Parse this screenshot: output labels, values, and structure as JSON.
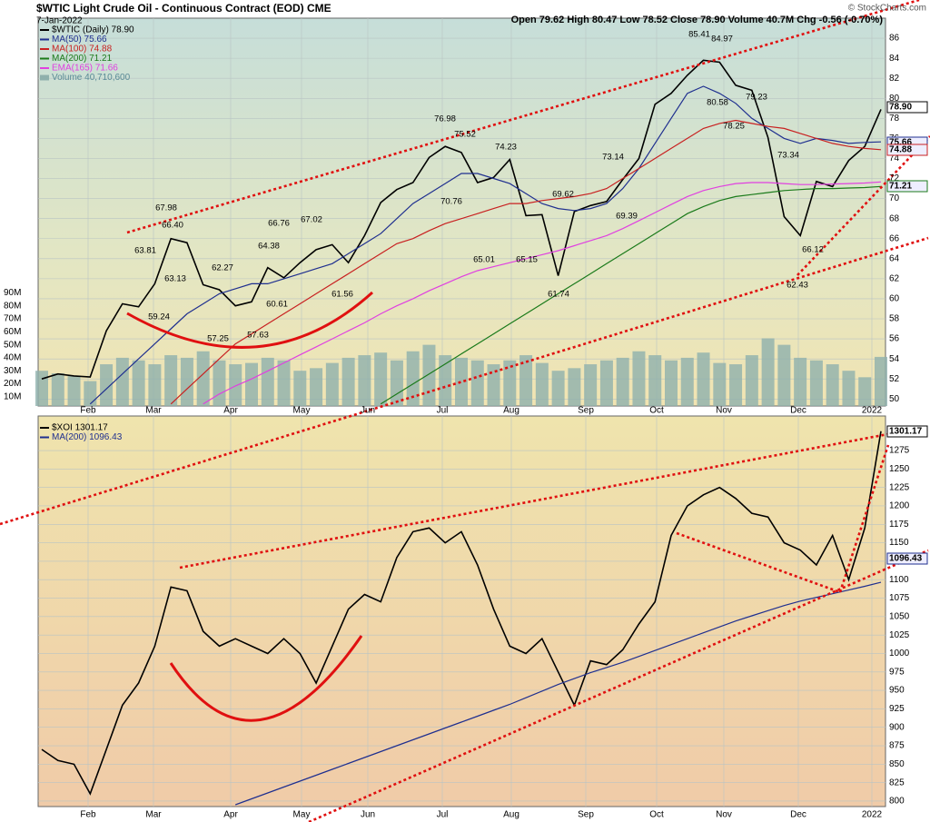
{
  "header": {
    "watermark": "© StockCharts.com"
  },
  "chart_data": [
    {
      "type": "line",
      "title": "$WTIC Light Crude Oil - Continuous Contract (EOD) CME",
      "date": "7-Jan-2022",
      "quote": "Open 79.62 High 80.47 Low 78.52 Close 78.90 Volume 40.7M Chg -0.56 (-0.70%)",
      "xtick_labels": [
        "Feb",
        "Mar",
        "Apr",
        "May",
        "Jun",
        "Jul",
        "Aug",
        "Sep",
        "Oct",
        "Nov",
        "Dec",
        "2022"
      ],
      "ylim": [
        49.3,
        88
      ],
      "yticks": [
        50,
        52,
        54,
        56,
        58,
        60,
        62,
        64,
        66,
        68,
        70,
        72,
        74,
        76,
        78,
        80,
        82,
        84,
        86
      ],
      "grid": true,
      "series": [
        {
          "name": "$WTIC (Daily) 78.90",
          "color": "#000000",
          "values": [
            52,
            52.5,
            52.3,
            52.2,
            56.8,
            59.5,
            59.2,
            61.5,
            66,
            65.6,
            61.4,
            60.9,
            59.3,
            59.7,
            63.1,
            62.1,
            63.6,
            64.9,
            65.4,
            63.6,
            66.3,
            69.6,
            70.9,
            71.6,
            74.1,
            75.2,
            74.6,
            71.6,
            72.1,
            73.9,
            68.3,
            68.4,
            62.3,
            68.7,
            69.3,
            69.7,
            71.9,
            74,
            79.4,
            80.5,
            82.3,
            83.8,
            83.6,
            81.3,
            80.8,
            76.1,
            68.2,
            66.3,
            71.7,
            71.2,
            73.8,
            75.2,
            78.9
          ]
        },
        {
          "name": "MA(50) 75.66",
          "color": "#1f2f8f",
          "values": [
            null,
            null,
            null,
            49.5,
            51,
            52.5,
            54,
            55.5,
            57,
            58.5,
            59.5,
            60.5,
            61,
            61.5,
            61.5,
            62,
            62.5,
            63,
            63.5,
            64.5,
            65.5,
            66.5,
            68,
            69.5,
            70.5,
            71.5,
            72.5,
            72.5,
            72,
            71.5,
            70.5,
            69.5,
            69,
            68.8,
            69,
            69.5,
            71,
            73,
            75.5,
            78,
            80.5,
            81.2,
            80.5,
            79.5,
            78,
            77,
            76,
            75.5,
            76,
            75.8,
            75.5,
            75.6,
            75.66
          ]
        },
        {
          "name": "MA(100) 74.88",
          "color": "#c82020",
          "values": [
            null,
            null,
            null,
            null,
            null,
            null,
            null,
            null,
            49.5,
            51,
            52.5,
            54,
            55.5,
            56.5,
            57.5,
            58.5,
            59.5,
            60.5,
            61.5,
            62.5,
            63.5,
            64.5,
            65.5,
            66,
            66.8,
            67.5,
            68,
            68.5,
            69,
            69.5,
            69.5,
            69.8,
            70,
            70.2,
            70.5,
            71,
            72,
            73,
            74,
            75,
            76,
            77,
            77.5,
            77.8,
            77.5,
            77.2,
            77,
            76.5,
            76,
            75.5,
            75.2,
            75,
            74.88
          ]
        },
        {
          "name": "MA(200) 71.21",
          "color": "#1a7a1a",
          "values": [
            null,
            null,
            null,
            null,
            null,
            null,
            null,
            null,
            null,
            null,
            null,
            null,
            null,
            null,
            null,
            null,
            null,
            null,
            null,
            null,
            null,
            49.5,
            50.5,
            51.5,
            52.5,
            53.5,
            54.5,
            55.5,
            56.5,
            57.5,
            58.5,
            59.5,
            60.5,
            61.5,
            62.5,
            63.5,
            64.5,
            65.5,
            66.5,
            67.5,
            68.5,
            69.2,
            69.8,
            70.2,
            70.4,
            70.6,
            70.8,
            70.9,
            71,
            71,
            71.05,
            71.1,
            71.21
          ]
        },
        {
          "name": "EMA(165) 71.66",
          "color": "#e040e0",
          "values": [
            null,
            null,
            null,
            null,
            null,
            null,
            null,
            null,
            null,
            null,
            49.5,
            50.5,
            51.3,
            52,
            52.8,
            53.6,
            54.4,
            55.2,
            56,
            56.8,
            57.6,
            58.5,
            59.3,
            60,
            60.8,
            61.5,
            62.2,
            62.8,
            63.2,
            63.6,
            64,
            64.4,
            64.8,
            65.3,
            65.8,
            66.3,
            67,
            67.8,
            68.6,
            69.4,
            70.2,
            70.8,
            71.2,
            71.5,
            71.6,
            71.6,
            71.5,
            71.4,
            71.4,
            71.45,
            71.5,
            71.55,
            71.66
          ]
        }
      ],
      "volume": {
        "name": "Volume 40,710,600",
        "color": "#8fb0ac",
        "ylim": [
          2.8,
          302
        ],
        "yticks": [
          {
            "value": 10,
            "label": "10M"
          },
          {
            "value": 20,
            "label": "20M"
          },
          {
            "value": 30,
            "label": "30M"
          },
          {
            "value": 40,
            "label": "40M"
          },
          {
            "value": 50,
            "label": "50M"
          },
          {
            "value": 60,
            "label": "60M"
          },
          {
            "value": 70,
            "label": "70M"
          },
          {
            "value": 80,
            "label": "80M"
          },
          {
            "value": 90,
            "label": "90M"
          }
        ],
        "values": [
          30,
          28,
          26,
          22,
          35,
          40,
          38,
          35,
          42,
          40,
          45,
          38,
          35,
          36,
          40,
          38,
          30,
          32,
          36,
          40,
          42,
          44,
          38,
          45,
          50,
          42,
          40,
          38,
          35,
          38,
          42,
          36,
          30,
          32,
          35,
          38,
          40,
          45,
          42,
          38,
          40,
          44,
          36,
          35,
          42,
          55,
          50,
          40,
          38,
          35,
          30,
          25,
          40.7
        ]
      },
      "annotations": [
        "85.41",
        "84.97",
        "80.58",
        "79.23",
        "78.25",
        "76.98",
        "75.52",
        "74.23",
        "73.14",
        "73.34",
        "70.76",
        "69.62",
        "69.39",
        "67.98",
        "66.40",
        "66.76",
        "67.02",
        "66.12",
        "65.01",
        "65.15",
        "63.81",
        "63.13",
        "64.38",
        "62.27",
        "61.56",
        "61.74",
        "62.43",
        "60.61",
        "59.24",
        "57.25",
        "57.63"
      ],
      "last_labels": [
        "78.90",
        "75.66",
        "74.88",
        "71.21"
      ]
    },
    {
      "type": "line",
      "xtick_labels": [
        "Feb",
        "Mar",
        "Apr",
        "May",
        "Jun",
        "Jul",
        "Aug",
        "Sep",
        "Oct",
        "Nov",
        "Dec",
        "2022"
      ],
      "ylim": [
        792.6,
        1321.8
      ],
      "yticks": [
        800,
        825,
        850,
        875,
        900,
        925,
        950,
        975,
        1000,
        1025,
        1050,
        1075,
        1100,
        1125,
        1150,
        1175,
        1200,
        1225,
        1250,
        1275
      ],
      "grid": true,
      "series": [
        {
          "name": "$XOI 1301.17",
          "color": "#000000",
          "values": [
            870,
            855,
            850,
            810,
            870,
            930,
            960,
            1010,
            1090,
            1085,
            1030,
            1010,
            1020,
            1010,
            1000,
            1020,
            1000,
            960,
            1010,
            1060,
            1080,
            1070,
            1130,
            1165,
            1170,
            1150,
            1165,
            1120,
            1060,
            1010,
            1000,
            1020,
            975,
            930,
            990,
            985,
            1005,
            1040,
            1070,
            1160,
            1200,
            1215,
            1225,
            1210,
            1190,
            1185,
            1150,
            1140,
            1120,
            1160,
            1100,
            1170,
            1301.17
          ]
        },
        {
          "name": "MA(200) 1096.43",
          "color": "#1f2f8f",
          "values": [
            null,
            null,
            null,
            null,
            null,
            null,
            null,
            null,
            null,
            null,
            null,
            null,
            795,
            803,
            811,
            819,
            827,
            835,
            843,
            851,
            859,
            867,
            875,
            883,
            891,
            899,
            907,
            915,
            923,
            931,
            940,
            949,
            958,
            966,
            974,
            981,
            988,
            996,
            1004,
            1012,
            1020,
            1028,
            1036,
            1044,
            1051,
            1058,
            1065,
            1071,
            1076,
            1081,
            1086,
            1091,
            1096.43
          ]
        }
      ],
      "last_labels": [
        "1301.17",
        "1096.43"
      ]
    }
  ]
}
